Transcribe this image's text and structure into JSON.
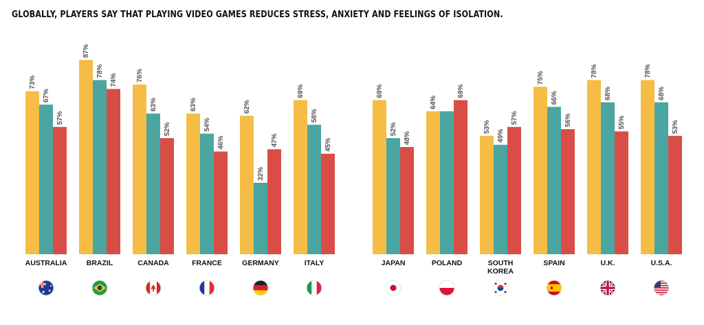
{
  "title": "GLOBALLY, PLAYERS SAY THAT PLAYING VIDEO GAMES REDUCES STRESS, ANXIETY AND FEELINGS OF ISOLATION.",
  "colors": {
    "series1": "#f5bd45",
    "series2": "#4ba5a0",
    "series3": "#d94d47"
  },
  "chart_data": {
    "type": "bar",
    "title": "GLOBALLY, PLAYERS SAY THAT PLAYING VIDEO GAMES REDUCES STRESS, ANXIETY AND FEELINGS OF ISOLATION.",
    "xlabel": "",
    "ylabel": "",
    "ylim": [
      0,
      100
    ],
    "grid": false,
    "legend": "none",
    "categories": [
      "AUSTRALIA",
      "BRAZIL",
      "CANADA",
      "FRANCE",
      "GERMANY",
      "ITALY",
      "JAPAN",
      "POLAND",
      "SOUTH KOREA",
      "SPAIN",
      "U.K.",
      "U.S.A."
    ],
    "category_lines": [
      [
        "AUSTRALIA"
      ],
      [
        "BRAZIL"
      ],
      [
        "CANADA"
      ],
      [
        "FRANCE"
      ],
      [
        "GERMANY"
      ],
      [
        "ITALY"
      ],
      [
        "JAPAN"
      ],
      [
        "POLAND"
      ],
      [
        "SOUTH",
        "KOREA"
      ],
      [
        "SPAIN"
      ],
      [
        "U.K."
      ],
      [
        "U.S.A."
      ]
    ],
    "flags": [
      "australia-flag-icon",
      "brazil-flag-icon",
      "canada-flag-icon",
      "france-flag-icon",
      "germany-flag-icon",
      "italy-flag-icon",
      "japan-flag-icon",
      "poland-flag-icon",
      "south-korea-flag-icon",
      "spain-flag-icon",
      "uk-flag-icon",
      "usa-flag-icon"
    ],
    "series": [
      {
        "values": [
          73,
          87,
          76,
          63,
          62,
          69,
          69,
          64,
          53,
          75,
          78,
          78
        ],
        "labels": [
          "73%",
          "87%",
          "76%",
          "63%",
          "62%",
          "69%",
          "69%",
          "64%",
          "53%",
          "75%",
          "78%",
          "78%"
        ]
      },
      {
        "values": [
          67,
          78,
          63,
          54,
          32,
          58,
          52,
          64,
          49,
          66,
          68,
          68
        ],
        "labels": [
          "67%",
          "78%",
          "63%",
          "54%",
          "32%",
          "58%",
          "52%",
          "",
          "49%",
          "66%",
          "68%",
          "68%"
        ]
      },
      {
        "values": [
          57,
          74,
          52,
          46,
          47,
          45,
          48,
          69,
          57,
          56,
          55,
          53
        ],
        "labels": [
          "57%",
          "74%",
          "52%",
          "46%",
          "47%",
          "45%",
          "48%",
          "69%",
          "57%",
          "56%",
          "55%",
          "53%"
        ]
      }
    ]
  }
}
